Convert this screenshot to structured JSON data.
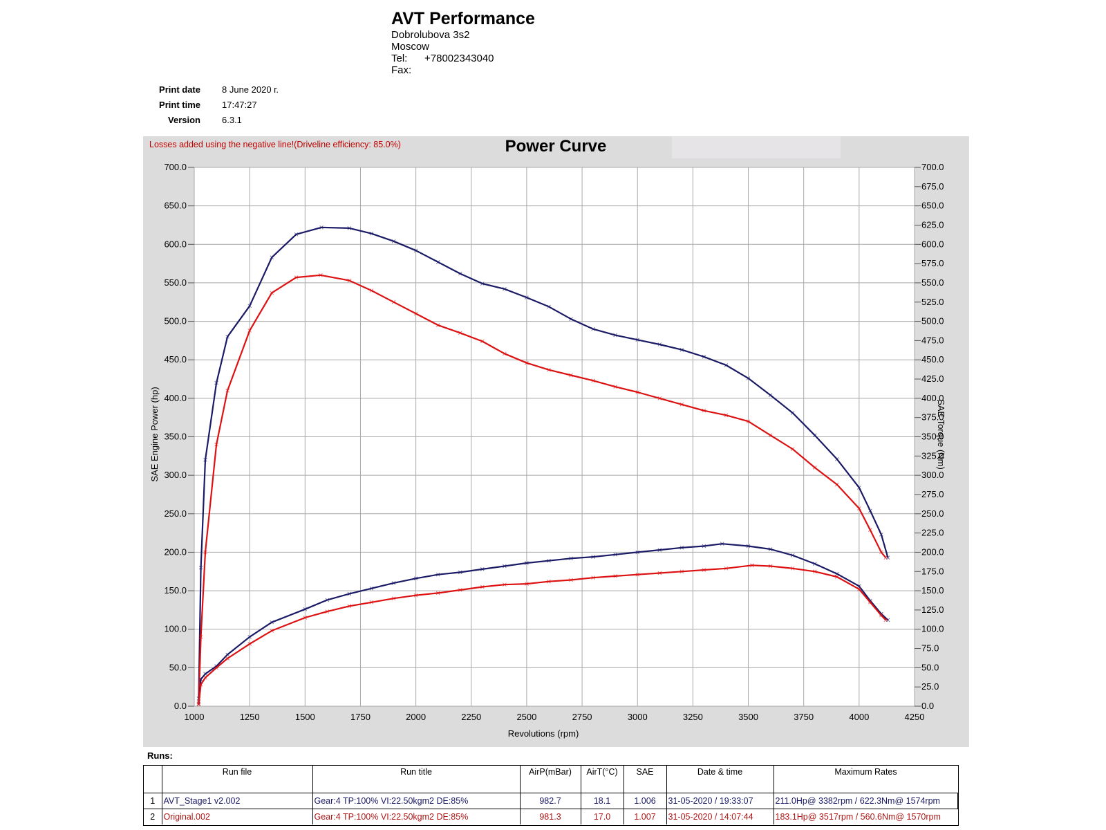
{
  "header": {
    "company": "AVT Performance",
    "address1": "Dobrolubova 3s2",
    "address2": "Moscow",
    "tel_label": "Tel:",
    "tel_value": "+78002343040",
    "fax_label": "Fax:"
  },
  "meta": {
    "print_date_label": "Print date",
    "print_date": "8 June 2020 г.",
    "print_time_label": "Print time",
    "print_time": "17:47:27",
    "version_label": "Version",
    "version": "6.3.1"
  },
  "chart_data": {
    "type": "line",
    "title": "Power Curve",
    "note": "Losses added using the negative line!(Driveline efficiency: 85.0%)",
    "xlabel": "Revolutions (rpm)",
    "ylabel": "SAE Engine Power (hp)",
    "y2label": "SAE Torque (Nm)",
    "xlim": [
      1000,
      4250
    ],
    "ylim": [
      0,
      700
    ],
    "y2lim": [
      0,
      700
    ],
    "x_ticks": [
      1000,
      1250,
      1500,
      1750,
      2000,
      2250,
      2500,
      2750,
      3000,
      3250,
      3500,
      3750,
      4000,
      4250
    ],
    "x_tick_labels": [
      "1000",
      "1250",
      "1500",
      "1750",
      "2000",
      "2250",
      "2500",
      "2750",
      "3000",
      "3250",
      "3500",
      "3750",
      "4000",
      "4250"
    ],
    "y_ticks": [
      0,
      50,
      100,
      150,
      200,
      250,
      300,
      350,
      400,
      450,
      500,
      550,
      600,
      650,
      700
    ],
    "y_tick_labels": [
      "0.0",
      "50.0",
      "100.0",
      "150.0",
      "200.0",
      "250.0",
      "300.0",
      "350.0",
      "400.0",
      "450.0",
      "500.0",
      "550.0",
      "600.0",
      "650.0",
      "700.0"
    ],
    "y2_ticks": [
      0,
      25,
      50,
      75,
      100,
      125,
      150,
      175,
      200,
      225,
      250,
      275,
      300,
      325,
      350,
      375,
      400,
      425,
      450,
      475,
      500,
      525,
      550,
      575,
      600,
      625,
      650,
      675,
      700
    ],
    "y2_tick_labels": [
      "0.0",
      "25.0",
      "50.0",
      "75.0",
      "100.0",
      "125.0",
      "150.0",
      "175.0",
      "200.0",
      "225.0",
      "250.0",
      "275.0",
      "300.0",
      "325.0",
      "350.0",
      "375.0",
      "400.0",
      "425.0",
      "450.0",
      "475.0",
      "500.0",
      "525.0",
      "550.0",
      "575.0",
      "600.0",
      "625.0",
      "650.0",
      "675.0",
      "700.0"
    ],
    "grid": true,
    "series": [
      {
        "run": 1,
        "quantity": "torque",
        "color": "#1a1a66",
        "x": [
          1020,
          1030,
          1050,
          1100,
          1150,
          1250,
          1350,
          1460,
          1574,
          1700,
          1800,
          1900,
          2000,
          2100,
          2200,
          2300,
          2400,
          2500,
          2600,
          2700,
          2800,
          2900,
          3000,
          3100,
          3200,
          3300,
          3400,
          3500,
          3600,
          3700,
          3800,
          3900,
          4000,
          4050,
          4100,
          4130
        ],
        "y": [
          10,
          180,
          320,
          420,
          480,
          520,
          583,
          613,
          622,
          621,
          614,
          604,
          592,
          577,
          562,
          549,
          542,
          531,
          519,
          503,
          490,
          482,
          476,
          470,
          463,
          454,
          443,
          426,
          404,
          381,
          352,
          321,
          284,
          254,
          223,
          193
        ]
      },
      {
        "run": 2,
        "quantity": "torque",
        "color": "#dd1111",
        "x": [
          1020,
          1030,
          1050,
          1100,
          1150,
          1250,
          1350,
          1460,
          1570,
          1700,
          1800,
          1900,
          2000,
          2100,
          2200,
          2300,
          2400,
          2500,
          2600,
          2700,
          2800,
          2900,
          3000,
          3100,
          3200,
          3300,
          3400,
          3500,
          3600,
          3700,
          3800,
          3900,
          4000,
          4050,
          4100,
          4120
        ],
        "y": [
          5,
          90,
          200,
          340,
          410,
          488,
          537,
          557,
          560,
          553,
          540,
          525,
          510,
          495,
          485,
          474,
          458,
          446,
          437,
          430,
          423,
          415,
          408,
          400,
          392,
          384,
          378,
          370,
          352,
          334,
          310,
          288,
          257,
          229,
          200,
          193
        ]
      },
      {
        "run": 1,
        "quantity": "power",
        "color": "#1a1a66",
        "x": [
          1020,
          1030,
          1050,
          1100,
          1150,
          1250,
          1350,
          1500,
          1600,
          1700,
          1800,
          1900,
          2000,
          2100,
          2200,
          2300,
          2400,
          2500,
          2600,
          2700,
          2800,
          2900,
          3000,
          3100,
          3200,
          3300,
          3382,
          3500,
          3600,
          3700,
          3800,
          3900,
          4000,
          4050,
          4100,
          4130
        ],
        "y": [
          3,
          35,
          42,
          52,
          67,
          90,
          109,
          126,
          138,
          146,
          153,
          160,
          166,
          171,
          174,
          178,
          182,
          186,
          189,
          192,
          194,
          197,
          200,
          203,
          206,
          208,
          211,
          208,
          204,
          196,
          185,
          172,
          156,
          137,
          120,
          112
        ]
      },
      {
        "run": 2,
        "quantity": "power",
        "color": "#dd1111",
        "x": [
          1020,
          1030,
          1050,
          1100,
          1150,
          1250,
          1350,
          1500,
          1600,
          1700,
          1800,
          1900,
          2000,
          2100,
          2200,
          2300,
          2400,
          2500,
          2600,
          2700,
          2800,
          2900,
          3000,
          3100,
          3200,
          3300,
          3400,
          3517,
          3600,
          3700,
          3800,
          3900,
          4000,
          4050,
          4100,
          4120
        ],
        "y": [
          2,
          28,
          37,
          50,
          62,
          81,
          98,
          115,
          123,
          130,
          135,
          140,
          144,
          147,
          151,
          155,
          158,
          159,
          162,
          164,
          167,
          169,
          171,
          173,
          175,
          177,
          179,
          183,
          182,
          179,
          175,
          168,
          152,
          135,
          118,
          112
        ]
      }
    ]
  },
  "runs": {
    "label": "Runs:",
    "columns": [
      "",
      "Run file",
      "Run title",
      "AirP(mBar)",
      "AirT(°C)",
      "SAE",
      "Date & time",
      "Maximum Rates"
    ],
    "rows": [
      {
        "no": "1",
        "file": "AVT_Stage1 v2.002",
        "title": "Gear:4 TP:100% VI:22.50kgm2 DE:85%",
        "airp": "982.7",
        "airt": "18.1",
        "sae": "1.006",
        "datetime": "31-05-2020 / 19:33:07",
        "max": "211.0Hp@ 3382rpm / 622.3Nm@ 1574rpm",
        "color": "#1a1a66"
      },
      {
        "no": "2",
        "file": "Original.002",
        "title": "Gear:4 TP:100% VI:22.50kgm2 DE:85%",
        "airp": "981.3",
        "airt": "17.0",
        "sae": "1.007",
        "datetime": "31-05-2020 / 14:07:44",
        "max": "183.1Hp@ 3517rpm / 560.6Nm@ 1570rpm",
        "color": "#dd1111"
      }
    ]
  }
}
